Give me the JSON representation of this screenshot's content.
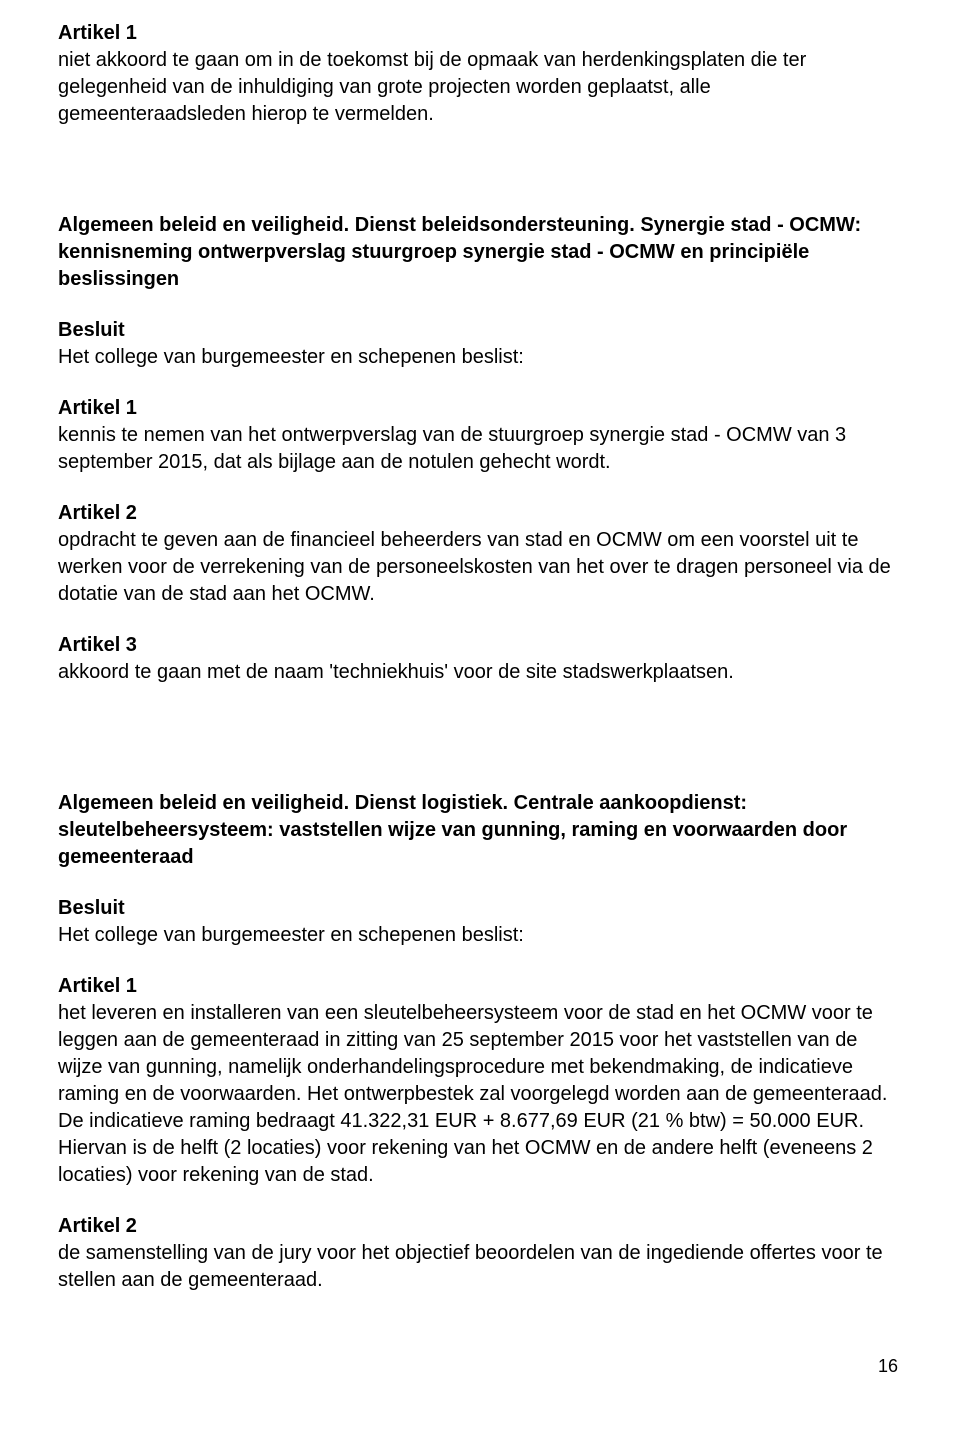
{
  "section1": {
    "article_label": "Artikel 1",
    "article_text": "niet akkoord te gaan om in de toekomst bij de opmaak van herdenkingsplaten die ter gelegenheid van de inhuldiging van grote projecten worden geplaatst, alle gemeenteraadsleden hierop te vermelden."
  },
  "section2": {
    "heading": "Algemeen beleid en veiligheid. Dienst beleidsondersteuning. Synergie stad - OCMW: kennisneming ontwerpverslag stuurgroep synergie stad - OCMW en principiële beslissingen",
    "besluit_label": "Besluit",
    "besluit_text": "Het college van burgemeester en schepenen beslist:",
    "a1_label": "Artikel 1",
    "a1_text": "kennis te nemen van het ontwerpverslag van de stuurgroep synergie stad - OCMW van 3 september 2015, dat als bijlage aan de notulen gehecht wordt.",
    "a2_label": "Artikel 2",
    "a2_text": "opdracht te geven aan de financieel beheerders van stad en OCMW om een voorstel uit te werken voor de verrekening van de personeelskosten van het over te dragen personeel via de dotatie van de stad aan het OCMW.",
    "a3_label": "Artikel 3",
    "a3_text": "akkoord te gaan met de naam 'techniekhuis' voor de site stadswerkplaatsen."
  },
  "section3": {
    "heading": "Algemeen beleid en veiligheid. Dienst logistiek. Centrale aankoopdienst: sleutelbeheersysteem: vaststellen wijze van gunning, raming en voorwaarden door gemeenteraad",
    "besluit_label": "Besluit",
    "besluit_text": "Het college van burgemeester en schepenen beslist:",
    "a1_label": "Artikel 1",
    "a1_text": "het leveren en installeren van een sleutelbeheersysteem voor de stad en het OCMW voor te leggen aan de gemeenteraad in zitting van 25 september 2015 voor het vaststellen van de wijze van gunning, namelijk onderhandelingsprocedure met bekendmaking, de indicatieve raming en de voorwaarden. Het ontwerpbestek zal voorgelegd worden aan de gemeenteraad. De indicatieve raming bedraagt 41.322,31 EUR + 8.677,69 EUR (21 % btw) = 50.000 EUR. Hiervan is de helft (2 locaties) voor rekening van het OCMW en de andere helft (eveneens 2 locaties) voor rekening van de stad.",
    "a2_label": "Artikel 2",
    "a2_text": "de samenstelling van de jury voor het objectief beoordelen van de ingediende offertes voor te stellen aan de gemeenteraad."
  },
  "page_number": "16"
}
